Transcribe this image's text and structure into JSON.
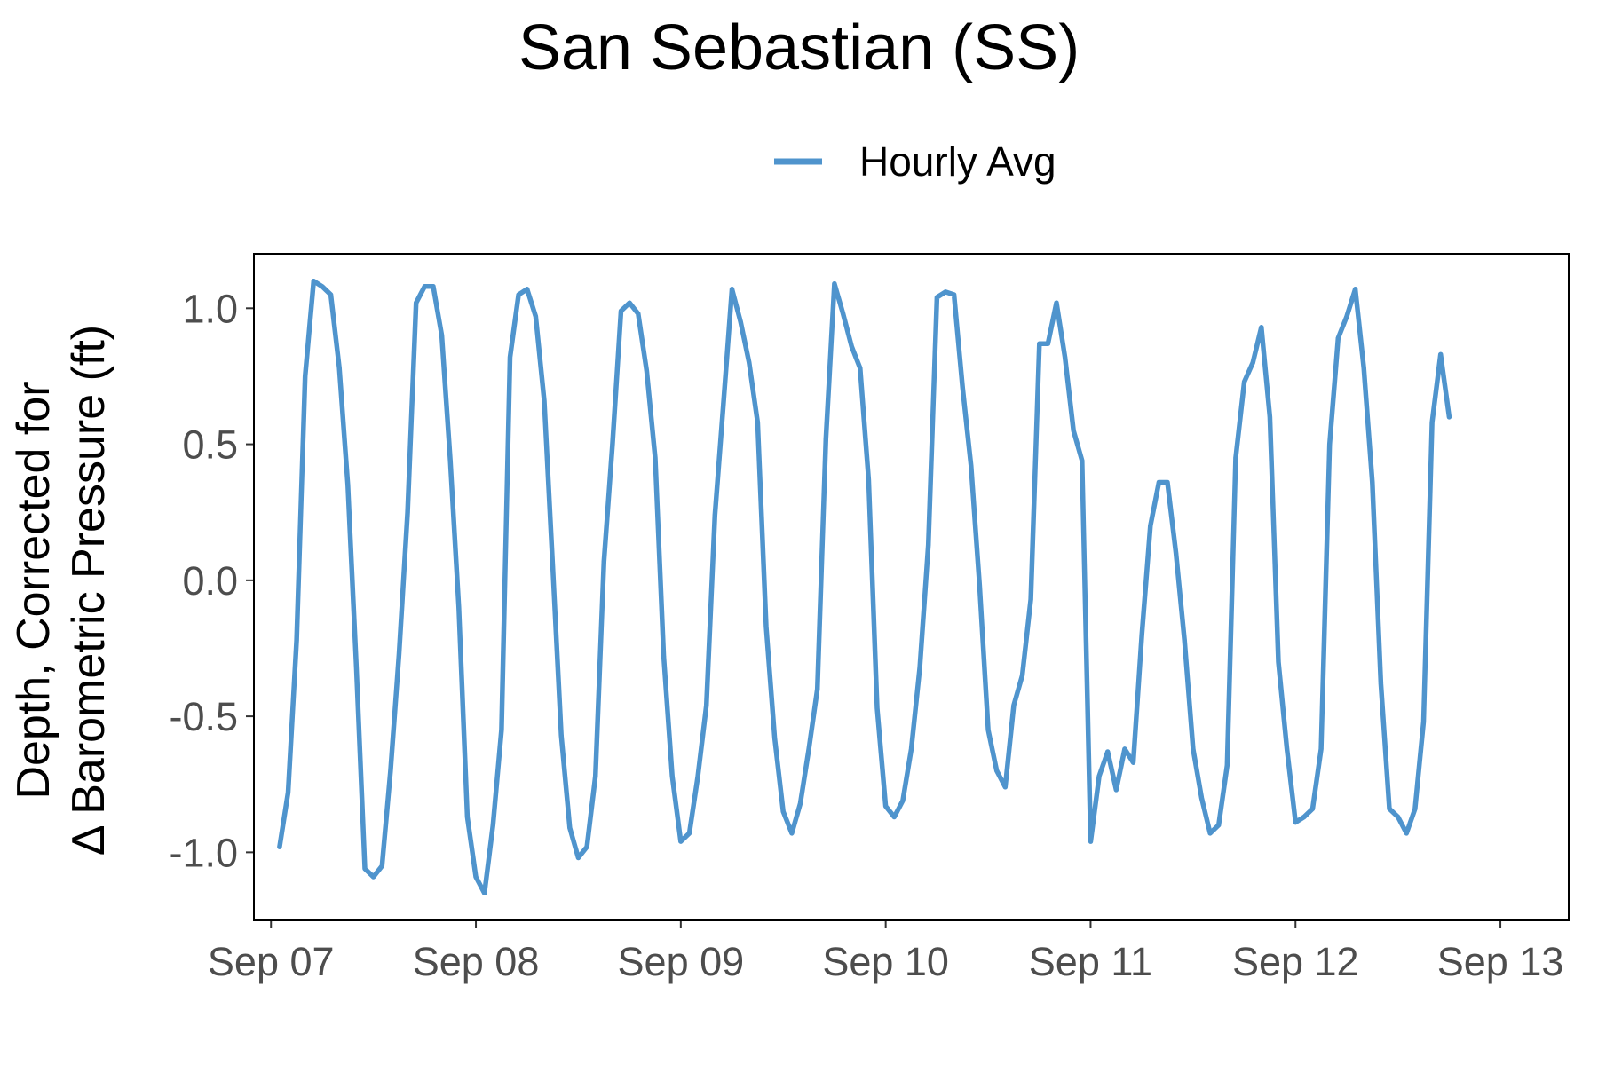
{
  "chart_data": {
    "type": "line",
    "title": "San Sebastian (SS)",
    "xlabel": "",
    "ylabel_lines": [
      "Depth, Corrected for",
      "Δ Barometric Pressure (ft)"
    ],
    "legend": {
      "position": "top",
      "entries": [
        "Hourly Avg"
      ]
    },
    "grid": false,
    "ylim": [
      -1.25,
      1.2
    ],
    "xlim": [
      "2023-09-06T22:00",
      "2023-09-13T08:00"
    ],
    "x_ticks": [
      {
        "value": "2023-09-07T00:00",
        "label": "Sep 07"
      },
      {
        "value": "2023-09-08T00:00",
        "label": "Sep 08"
      },
      {
        "value": "2023-09-09T00:00",
        "label": "Sep 09"
      },
      {
        "value": "2023-09-10T00:00",
        "label": "Sep 10"
      },
      {
        "value": "2023-09-11T00:00",
        "label": "Sep 11"
      },
      {
        "value": "2023-09-12T00:00",
        "label": "Sep 12"
      },
      {
        "value": "2023-09-13T00:00",
        "label": "Sep 13"
      }
    ],
    "y_ticks": [
      {
        "value": 1.0,
        "label": "1.0"
      },
      {
        "value": 0.5,
        "label": "0.5"
      },
      {
        "value": 0.0,
        "label": "0.0"
      },
      {
        "value": -0.5,
        "label": "-0.5"
      },
      {
        "value": -1.0,
        "label": "-1.0"
      }
    ],
    "series": [
      {
        "name": "Hourly Avg",
        "color": "#4f94cd",
        "points": [
          {
            "x": "2023-09-07T01:00",
            "y": -0.98
          },
          {
            "x": "2023-09-07T02:00",
            "y": -0.78
          },
          {
            "x": "2023-09-07T03:00",
            "y": -0.22
          },
          {
            "x": "2023-09-07T04:00",
            "y": 0.75
          },
          {
            "x": "2023-09-07T05:00",
            "y": 1.1
          },
          {
            "x": "2023-09-07T06:00",
            "y": 1.08
          },
          {
            "x": "2023-09-07T07:00",
            "y": 1.05
          },
          {
            "x": "2023-09-07T08:00",
            "y": 0.78
          },
          {
            "x": "2023-09-07T09:00",
            "y": 0.35
          },
          {
            "x": "2023-09-07T10:00",
            "y": -0.32
          },
          {
            "x": "2023-09-07T11:00",
            "y": -1.06
          },
          {
            "x": "2023-09-07T12:00",
            "y": -1.09
          },
          {
            "x": "2023-09-07T13:00",
            "y": -1.05
          },
          {
            "x": "2023-09-07T14:00",
            "y": -0.7
          },
          {
            "x": "2023-09-07T15:00",
            "y": -0.27
          },
          {
            "x": "2023-09-07T16:00",
            "y": 0.25
          },
          {
            "x": "2023-09-07T17:00",
            "y": 1.02
          },
          {
            "x": "2023-09-07T18:00",
            "y": 1.08
          },
          {
            "x": "2023-09-07T19:00",
            "y": 1.08
          },
          {
            "x": "2023-09-07T20:00",
            "y": 0.9
          },
          {
            "x": "2023-09-07T21:00",
            "y": 0.44
          },
          {
            "x": "2023-09-07T22:00",
            "y": -0.1
          },
          {
            "x": "2023-09-07T23:00",
            "y": -0.87
          },
          {
            "x": "2023-09-08T00:00",
            "y": -1.09
          },
          {
            "x": "2023-09-08T01:00",
            "y": -1.15
          },
          {
            "x": "2023-09-08T02:00",
            "y": -0.9
          },
          {
            "x": "2023-09-08T03:00",
            "y": -0.55
          },
          {
            "x": "2023-09-08T04:00",
            "y": 0.82
          },
          {
            "x": "2023-09-08T05:00",
            "y": 1.05
          },
          {
            "x": "2023-09-08T06:00",
            "y": 1.07
          },
          {
            "x": "2023-09-08T07:00",
            "y": 0.97
          },
          {
            "x": "2023-09-08T08:00",
            "y": 0.66
          },
          {
            "x": "2023-09-08T09:00",
            "y": 0.05
          },
          {
            "x": "2023-09-08T10:00",
            "y": -0.57
          },
          {
            "x": "2023-09-08T11:00",
            "y": -0.91
          },
          {
            "x": "2023-09-08T12:00",
            "y": -1.02
          },
          {
            "x": "2023-09-08T13:00",
            "y": -0.98
          },
          {
            "x": "2023-09-08T14:00",
            "y": -0.72
          },
          {
            "x": "2023-09-08T15:00",
            "y": 0.07
          },
          {
            "x": "2023-09-08T16:00",
            "y": 0.5
          },
          {
            "x": "2023-09-08T17:00",
            "y": 0.99
          },
          {
            "x": "2023-09-08T18:00",
            "y": 1.02
          },
          {
            "x": "2023-09-08T19:00",
            "y": 0.98
          },
          {
            "x": "2023-09-08T20:00",
            "y": 0.77
          },
          {
            "x": "2023-09-08T21:00",
            "y": 0.45
          },
          {
            "x": "2023-09-08T22:00",
            "y": -0.28
          },
          {
            "x": "2023-09-08T23:00",
            "y": -0.72
          },
          {
            "x": "2023-09-09T00:00",
            "y": -0.96
          },
          {
            "x": "2023-09-09T01:00",
            "y": -0.93
          },
          {
            "x": "2023-09-09T02:00",
            "y": -0.72
          },
          {
            "x": "2023-09-09T03:00",
            "y": -0.46
          },
          {
            "x": "2023-09-09T04:00",
            "y": 0.24
          },
          {
            "x": "2023-09-09T05:00",
            "y": 0.65
          },
          {
            "x": "2023-09-09T06:00",
            "y": 1.07
          },
          {
            "x": "2023-09-09T07:00",
            "y": 0.95
          },
          {
            "x": "2023-09-09T08:00",
            "y": 0.8
          },
          {
            "x": "2023-09-09T09:00",
            "y": 0.58
          },
          {
            "x": "2023-09-09T10:00",
            "y": -0.17
          },
          {
            "x": "2023-09-09T11:00",
            "y": -0.58
          },
          {
            "x": "2023-09-09T12:00",
            "y": -0.85
          },
          {
            "x": "2023-09-09T13:00",
            "y": -0.93
          },
          {
            "x": "2023-09-09T14:00",
            "y": -0.82
          },
          {
            "x": "2023-09-09T15:00",
            "y": -0.62
          },
          {
            "x": "2023-09-09T16:00",
            "y": -0.4
          },
          {
            "x": "2023-09-09T17:00",
            "y": 0.52
          },
          {
            "x": "2023-09-09T18:00",
            "y": 1.09
          },
          {
            "x": "2023-09-09T19:00",
            "y": 0.98
          },
          {
            "x": "2023-09-09T20:00",
            "y": 0.86
          },
          {
            "x": "2023-09-09T21:00",
            "y": 0.78
          },
          {
            "x": "2023-09-09T22:00",
            "y": 0.37
          },
          {
            "x": "2023-09-09T23:00",
            "y": -0.47
          },
          {
            "x": "2023-09-10T00:00",
            "y": -0.83
          },
          {
            "x": "2023-09-10T01:00",
            "y": -0.87
          },
          {
            "x": "2023-09-10T02:00",
            "y": -0.81
          },
          {
            "x": "2023-09-10T03:00",
            "y": -0.62
          },
          {
            "x": "2023-09-10T04:00",
            "y": -0.32
          },
          {
            "x": "2023-09-10T05:00",
            "y": 0.13
          },
          {
            "x": "2023-09-10T06:00",
            "y": 1.04
          },
          {
            "x": "2023-09-10T07:00",
            "y": 1.06
          },
          {
            "x": "2023-09-10T08:00",
            "y": 1.05
          },
          {
            "x": "2023-09-10T09:00",
            "y": 0.71
          },
          {
            "x": "2023-09-10T10:00",
            "y": 0.42
          },
          {
            "x": "2023-09-10T11:00",
            "y": -0.02
          },
          {
            "x": "2023-09-10T12:00",
            "y": -0.55
          },
          {
            "x": "2023-09-10T13:00",
            "y": -0.7
          },
          {
            "x": "2023-09-10T14:00",
            "y": -0.76
          },
          {
            "x": "2023-09-10T15:00",
            "y": -0.46
          },
          {
            "x": "2023-09-10T16:00",
            "y": -0.35
          },
          {
            "x": "2023-09-10T17:00",
            "y": -0.07
          },
          {
            "x": "2023-09-10T18:00",
            "y": 0.87
          },
          {
            "x": "2023-09-10T19:00",
            "y": 0.87
          },
          {
            "x": "2023-09-10T20:00",
            "y": 1.02
          },
          {
            "x": "2023-09-10T21:00",
            "y": 0.82
          },
          {
            "x": "2023-09-10T22:00",
            "y": 0.55
          },
          {
            "x": "2023-09-10T23:00",
            "y": 0.44
          },
          {
            "x": "2023-09-11T00:00",
            "y": -0.96
          },
          {
            "x": "2023-09-11T01:00",
            "y": -0.72
          },
          {
            "x": "2023-09-11T02:00",
            "y": -0.63
          },
          {
            "x": "2023-09-11T03:00",
            "y": -0.77
          },
          {
            "x": "2023-09-11T04:00",
            "y": -0.62
          },
          {
            "x": "2023-09-11T05:00",
            "y": -0.67
          },
          {
            "x": "2023-09-11T06:00",
            "y": -0.2
          },
          {
            "x": "2023-09-11T07:00",
            "y": 0.2
          },
          {
            "x": "2023-09-11T08:00",
            "y": 0.36
          },
          {
            "x": "2023-09-11T09:00",
            "y": 0.36
          },
          {
            "x": "2023-09-11T10:00",
            "y": 0.1
          },
          {
            "x": "2023-09-11T11:00",
            "y": -0.22
          },
          {
            "x": "2023-09-11T12:00",
            "y": -0.62
          },
          {
            "x": "2023-09-11T13:00",
            "y": -0.8
          },
          {
            "x": "2023-09-11T14:00",
            "y": -0.93
          },
          {
            "x": "2023-09-11T15:00",
            "y": -0.9
          },
          {
            "x": "2023-09-11T16:00",
            "y": -0.68
          },
          {
            "x": "2023-09-11T17:00",
            "y": 0.45
          },
          {
            "x": "2023-09-11T18:00",
            "y": 0.73
          },
          {
            "x": "2023-09-11T19:00",
            "y": 0.8
          },
          {
            "x": "2023-09-11T20:00",
            "y": 0.93
          },
          {
            "x": "2023-09-11T21:00",
            "y": 0.6
          },
          {
            "x": "2023-09-11T22:00",
            "y": -0.3
          },
          {
            "x": "2023-09-11T23:00",
            "y": -0.62
          },
          {
            "x": "2023-09-12T00:00",
            "y": -0.89
          },
          {
            "x": "2023-09-12T01:00",
            "y": -0.87
          },
          {
            "x": "2023-09-12T02:00",
            "y": -0.84
          },
          {
            "x": "2023-09-12T03:00",
            "y": -0.62
          },
          {
            "x": "2023-09-12T04:00",
            "y": 0.5
          },
          {
            "x": "2023-09-12T05:00",
            "y": 0.89
          },
          {
            "x": "2023-09-12T06:00",
            "y": 0.97
          },
          {
            "x": "2023-09-12T07:00",
            "y": 1.07
          },
          {
            "x": "2023-09-12T08:00",
            "y": 0.78
          },
          {
            "x": "2023-09-12T09:00",
            "y": 0.36
          },
          {
            "x": "2023-09-12T10:00",
            "y": -0.38
          },
          {
            "x": "2023-09-12T11:00",
            "y": -0.84
          },
          {
            "x": "2023-09-12T12:00",
            "y": -0.87
          },
          {
            "x": "2023-09-12T13:00",
            "y": -0.93
          },
          {
            "x": "2023-09-12T14:00",
            "y": -0.84
          },
          {
            "x": "2023-09-12T15:00",
            "y": -0.52
          },
          {
            "x": "2023-09-12T16:00",
            "y": 0.58
          },
          {
            "x": "2023-09-12T17:00",
            "y": 0.83
          },
          {
            "x": "2023-09-12T18:00",
            "y": 0.6
          }
        ]
      }
    ]
  }
}
